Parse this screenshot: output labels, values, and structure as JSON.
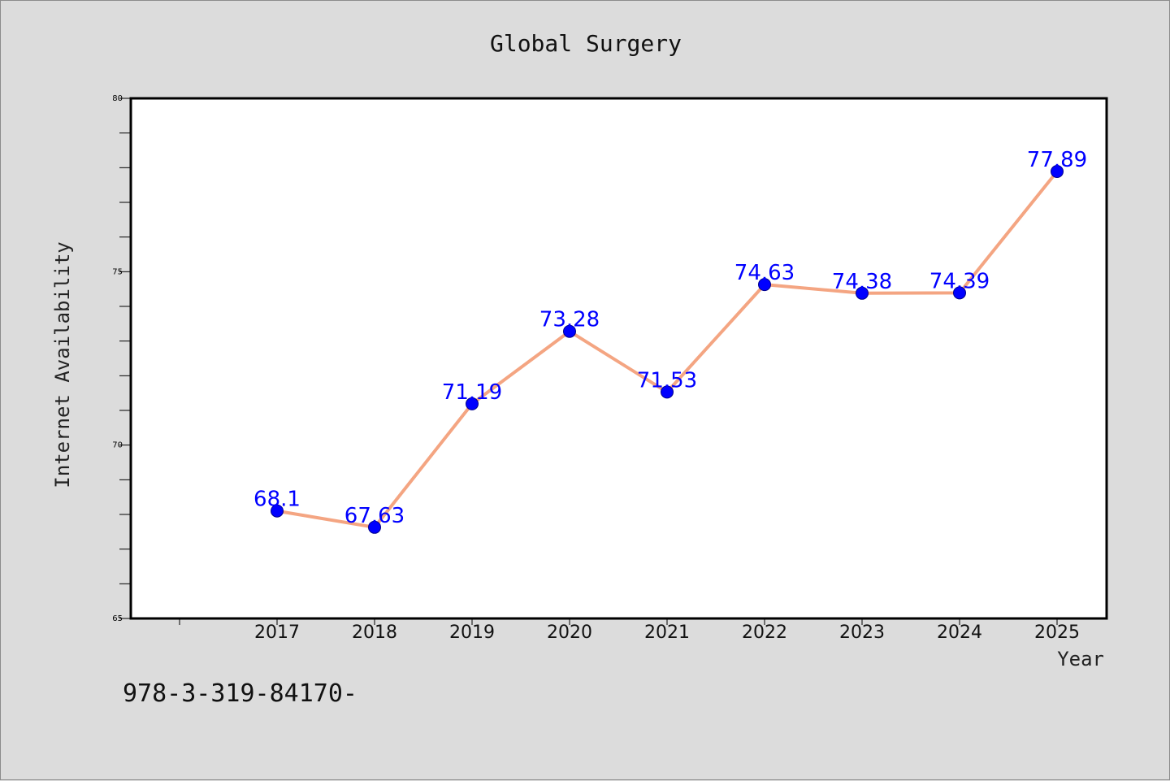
{
  "title": "Global Surgery",
  "footer_text": "978-3-319-84170-",
  "chart_data": {
    "type": "line",
    "title": "Global Surgery",
    "xlabel": "Year",
    "ylabel": "Internet Availability",
    "categories": [
      "2017",
      "2018",
      "2019",
      "2020",
      "2021",
      "2022",
      "2023",
      "2024",
      "2025"
    ],
    "series": [
      {
        "values": [
          68.1,
          67.63,
          71.19,
          73.28,
          71.53,
          74.63,
          74.38,
          74.39,
          77.89
        ],
        "labels": [
          "68.1",
          "67.63",
          "71.19",
          "73.28",
          "71.53",
          "74.63",
          "74.38",
          "74.39",
          "77.89"
        ]
      }
    ],
    "ylim": [
      65,
      80
    ],
    "yticks": [
      "65",
      "70",
      "75",
      "80"
    ],
    "grid": false,
    "line_color": "#f4a582",
    "marker_color": "#0000ff",
    "label_color": "#0000ff"
  }
}
